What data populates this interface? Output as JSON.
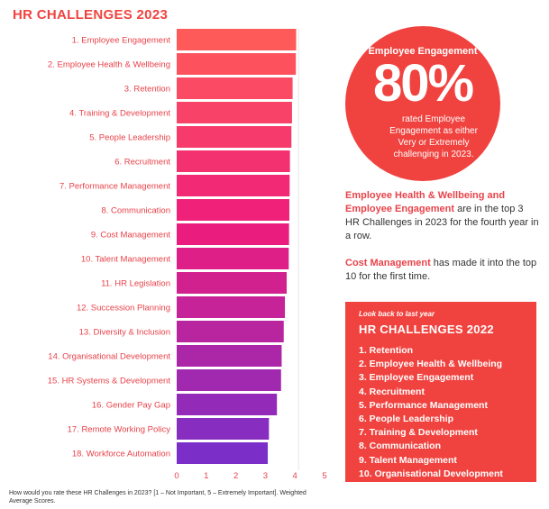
{
  "title": "HR CHALLENGES 2023",
  "chart_data": {
    "type": "bar",
    "orientation": "horizontal",
    "categories": [
      "1. Employee Engagement",
      "2. Employee Health & Wellbeing",
      "3. Retention",
      "4. Training & Development",
      "5. People Leadership",
      "6. Recruitment",
      "7. Performance Management",
      "8. Communication",
      "9. Cost Management",
      "10. Talent Management",
      "11. HR Legislation",
      "12. Succession Planning",
      "13. Diversity & Inclusion",
      "14. Organisational Development",
      "15. HR Systems & Development",
      "16. Gender Pay Gap",
      "17. Remote Working Policy",
      "18. Workforce Automation"
    ],
    "values": [
      4.04,
      4.03,
      3.92,
      3.9,
      3.88,
      3.83,
      3.82,
      3.81,
      3.8,
      3.79,
      3.72,
      3.66,
      3.62,
      3.55,
      3.53,
      3.39,
      3.12,
      3.08
    ],
    "xlim": [
      0,
      5
    ],
    "xticks": [
      "0",
      "1",
      "2",
      "3",
      "4",
      "5"
    ],
    "grid": false,
    "colors": {
      "start": "#ff5a5a",
      "middle": "#ee1c7c",
      "end": "#7b2fc8"
    }
  },
  "footnote": "How would you rate these HR Challenges in 2023? [1 – Not Important, 5 – Extremely Important]. Weighted Average Scores.",
  "highlight": {
    "title": "Employee Engagement",
    "big": "80%",
    "text": "rated Employee Engagement as either Very or Extremely challenging in 2023."
  },
  "para1": {
    "hl1": "Employee Health & Wellbeing and Employee Engagement",
    "text1": " are in the top 3 HR Challenges in 2023 for the fourth year in a row."
  },
  "para2": {
    "hl2": "Cost Management",
    "text2": " has made it into the top 10 for the first time."
  },
  "box": {
    "subtitle": "Look back to last year",
    "title": "HR CHALLENGES 2022",
    "items": [
      "1. Retention",
      "2. Employee Health & Wellbeing",
      "3. Employee Engagement",
      "4. Recruitment",
      "5. Performance Management",
      "6. People Leadership",
      "7. Training & Development",
      "8. Communication",
      "9. Talent Management",
      "10. Organisational Development"
    ]
  }
}
